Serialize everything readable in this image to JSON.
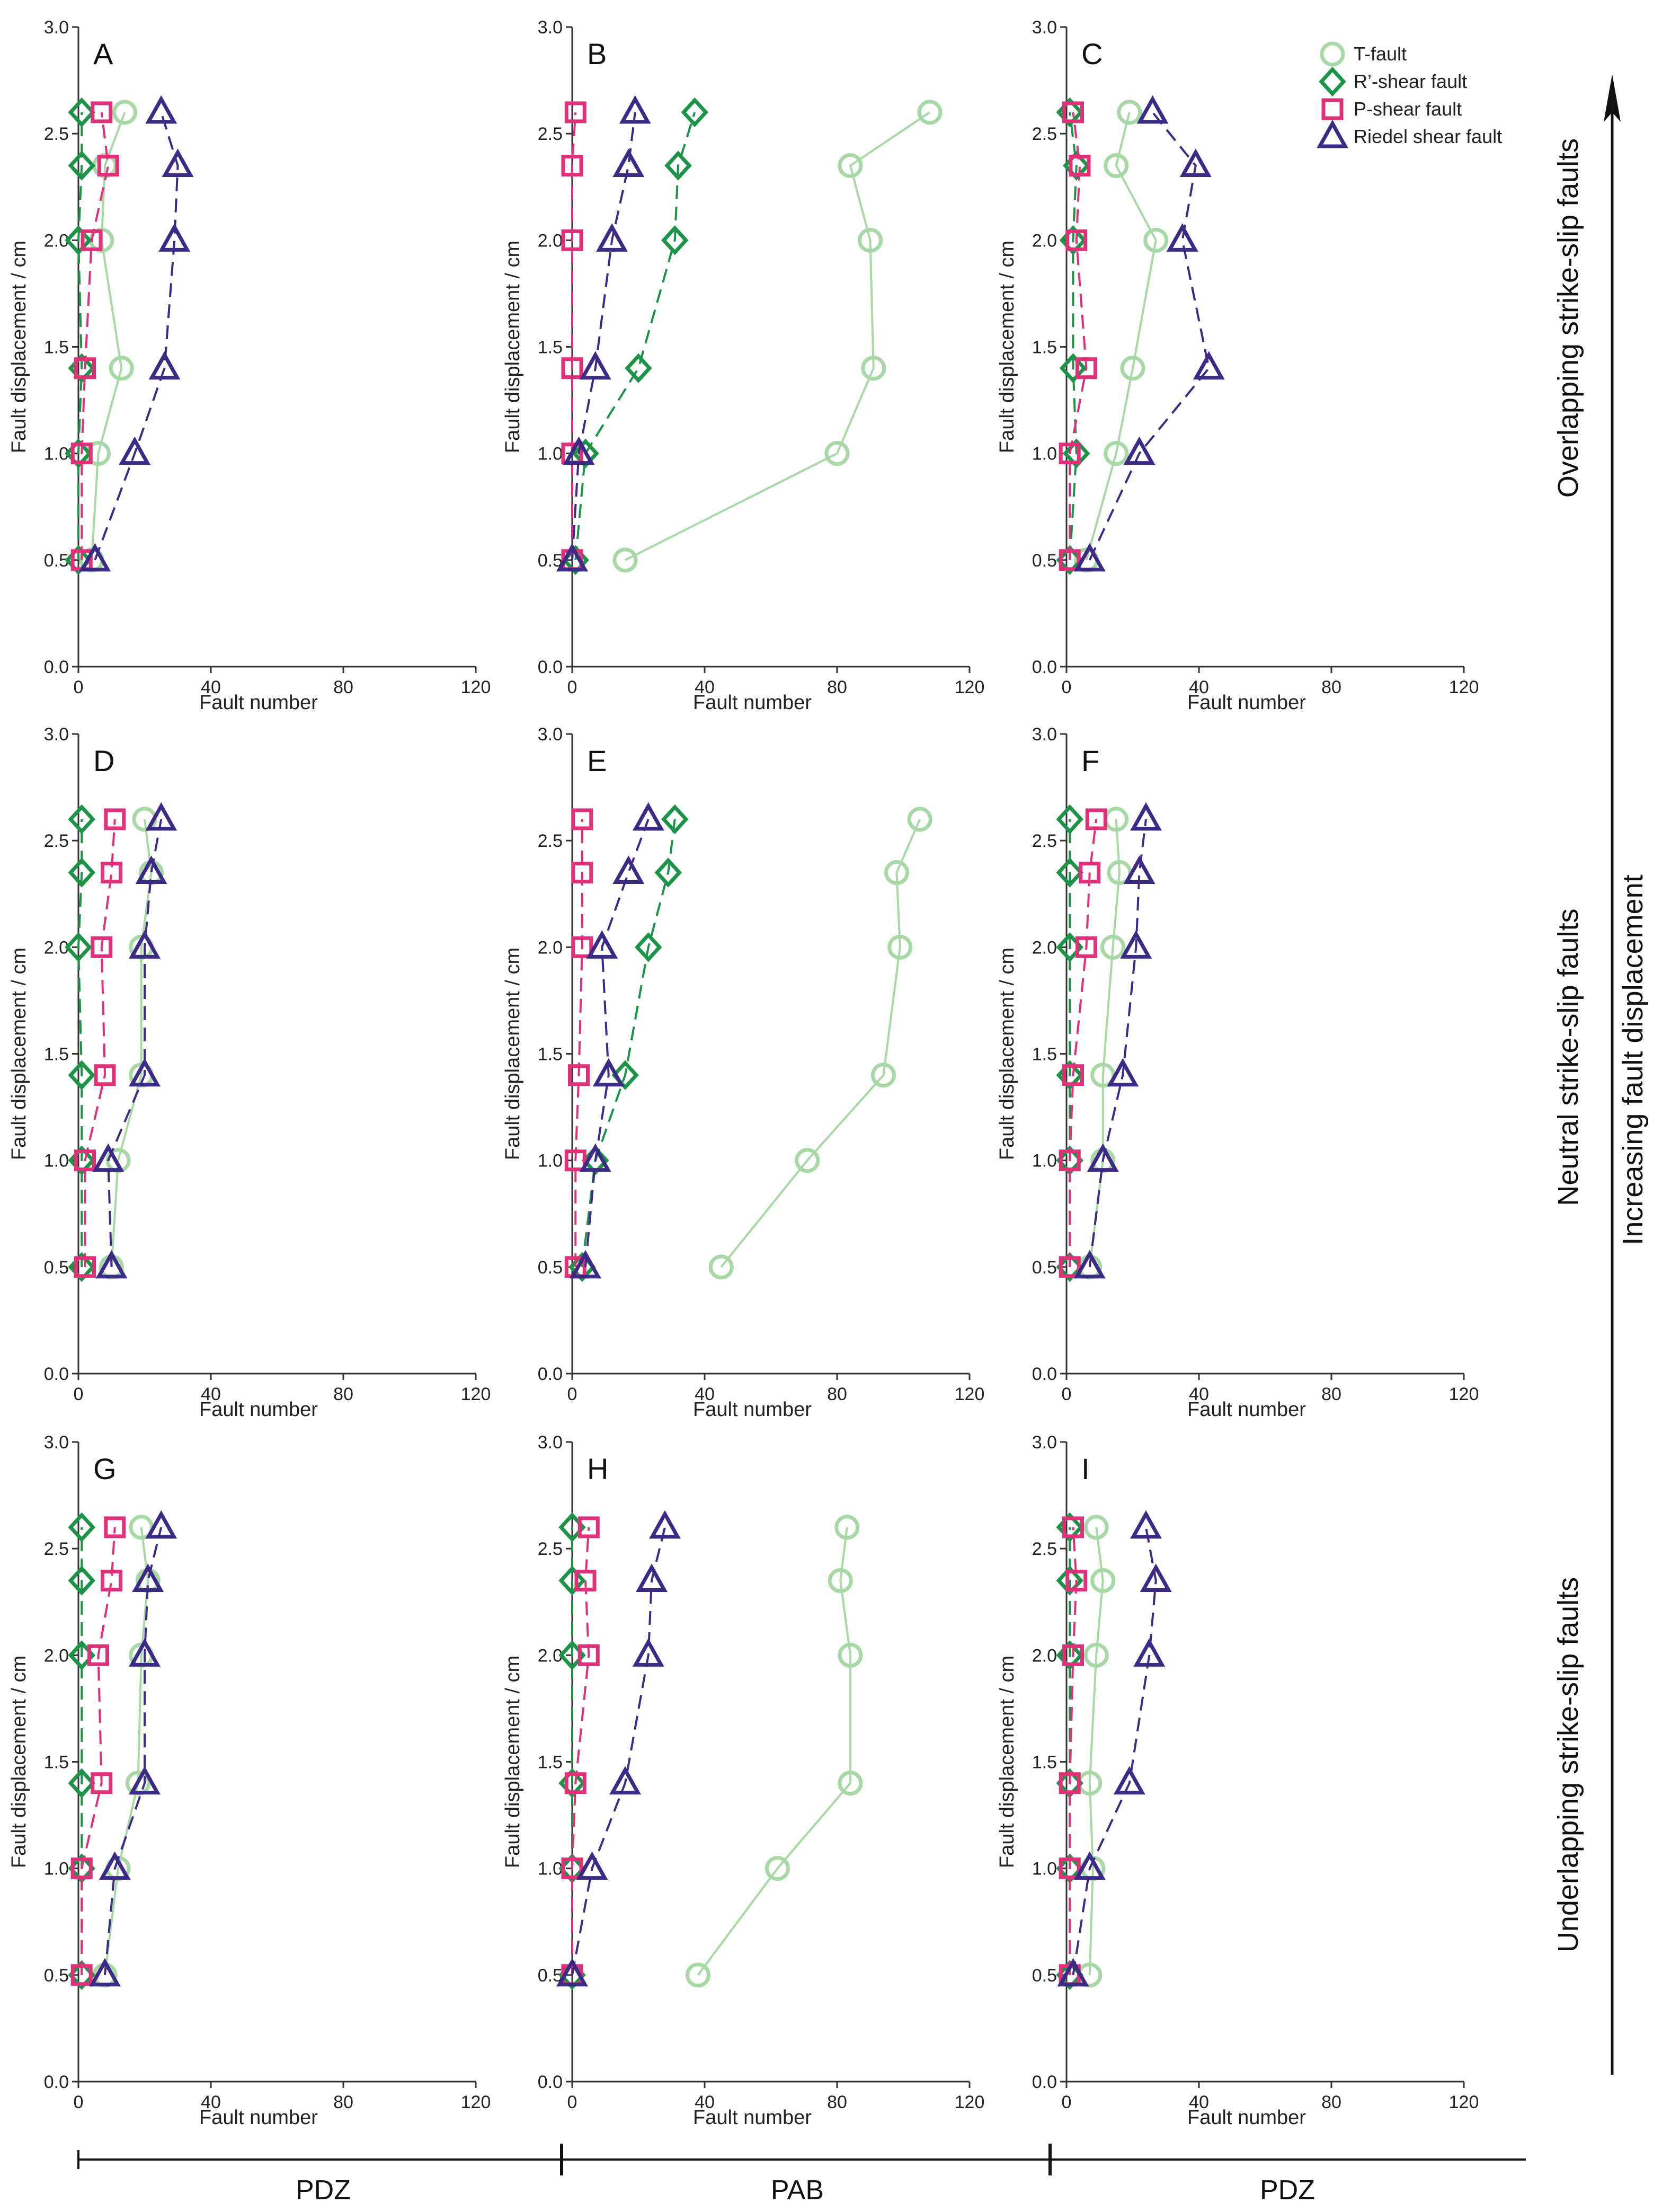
{
  "chart_data": {
    "type": "line",
    "axes": {
      "ylabel": "Fault displacement / cm",
      "xlabel": "Fault number",
      "ylim": [
        0,
        3.0
      ],
      "yticks": [
        "0.0",
        "0.5",
        "1.0",
        "1.5",
        "2.0",
        "2.5",
        "3.0"
      ],
      "xlim": [
        0,
        120
      ],
      "xticks": [
        "0",
        "40",
        "80",
        "120"
      ]
    },
    "series_styles": [
      {
        "key": "t",
        "name": "T-fault",
        "marker": "circle",
        "color": "#a7d8a5",
        "dashed": false
      },
      {
        "key": "r",
        "name": "R’-shear fault",
        "marker": "diamond",
        "color": "#1b9448",
        "dashed": true
      },
      {
        "key": "p",
        "name": "P-shear fault",
        "marker": "square",
        "color": "#e0307a",
        "dashed": true
      },
      {
        "key": "riedel",
        "name": "Riedel shear fault",
        "marker": "triangle",
        "color": "#3d2a86",
        "dashed": true
      }
    ],
    "displacements": [
      0.5,
      1.0,
      1.4,
      2.0,
      2.35,
      2.6
    ],
    "panels": [
      {
        "id": "A",
        "t": [
          4,
          6,
          13,
          7,
          8,
          14
        ],
        "r": [
          0,
          0,
          1,
          0,
          1,
          1
        ],
        "p": [
          1,
          1,
          2,
          4,
          9,
          7
        ],
        "riedel": [
          5,
          17,
          26,
          29,
          30,
          25
        ]
      },
      {
        "id": "B",
        "t": [
          16,
          80,
          91,
          90,
          84,
          108
        ],
        "r": [
          1,
          4,
          20,
          31,
          32,
          37
        ],
        "p": [
          0,
          0,
          0,
          0,
          0,
          1
        ],
        "riedel": [
          0,
          2,
          7,
          12,
          17,
          19
        ]
      },
      {
        "id": "C",
        "t": [
          6,
          15,
          20,
          27,
          15,
          19
        ],
        "r": [
          1,
          3,
          2,
          2,
          3,
          1
        ],
        "p": [
          1,
          1,
          6,
          3,
          4,
          2
        ],
        "riedel": [
          7,
          22,
          43,
          35,
          39,
          26
        ]
      },
      {
        "id": "D",
        "t": [
          10,
          12,
          19,
          19,
          22,
          20
        ],
        "r": [
          1,
          1,
          1,
          0,
          1,
          1
        ],
        "p": [
          2,
          2,
          8,
          7,
          10,
          11
        ],
        "riedel": [
          10,
          9,
          20,
          20,
          22,
          25
        ]
      },
      {
        "id": "E",
        "t": [
          45,
          71,
          94,
          99,
          98,
          105
        ],
        "r": [
          3,
          7,
          16,
          23,
          29,
          31
        ],
        "p": [
          1,
          1,
          2,
          3,
          3,
          3
        ],
        "riedel": [
          4,
          7,
          11,
          9,
          17,
          23
        ]
      },
      {
        "id": "F",
        "t": [
          7,
          11,
          11,
          14,
          16,
          15
        ],
        "r": [
          1,
          1,
          1,
          1,
          1,
          1
        ],
        "p": [
          1,
          1,
          2,
          6,
          7,
          9
        ],
        "riedel": [
          7,
          11,
          17,
          21,
          22,
          24
        ]
      },
      {
        "id": "G",
        "t": [
          8,
          12,
          18,
          19,
          21,
          19
        ],
        "r": [
          1,
          1,
          1,
          1,
          1,
          1
        ],
        "p": [
          1,
          1,
          7,
          6,
          10,
          11
        ],
        "riedel": [
          8,
          11,
          20,
          20,
          21,
          25
        ]
      },
      {
        "id": "H",
        "t": [
          38,
          62,
          84,
          84,
          81,
          83
        ],
        "r": [
          0,
          0,
          0,
          0,
          0,
          0
        ],
        "p": [
          0,
          0,
          1,
          5,
          4,
          5
        ],
        "riedel": [
          0,
          6,
          16,
          23,
          24,
          28
        ]
      },
      {
        "id": "I",
        "t": [
          7,
          8,
          7,
          9,
          11,
          9
        ],
        "r": [
          1,
          1,
          1,
          1,
          1,
          1
        ],
        "p": [
          1,
          1,
          1,
          2,
          3,
          2
        ],
        "riedel": [
          2,
          7,
          19,
          25,
          27,
          24
        ]
      }
    ]
  },
  "legend": {
    "items": [
      "T-fault",
      "R’-shear fault",
      "P-shear fault",
      "Riedel shear fault"
    ]
  },
  "row_titles": [
    "Overlapping strike-slip faults",
    "Neutral strike-slip faults",
    "Underlapping strike-slip faults"
  ],
  "arrow_label": "Increasing  fault displacement",
  "bottom_labels": [
    "PDZ",
    "PAB",
    "PDZ"
  ],
  "colors": {
    "axis": "#333333",
    "t": "#a7d8a5",
    "r": "#1b9448",
    "p": "#e0307a",
    "riedel": "#3d2a86"
  }
}
